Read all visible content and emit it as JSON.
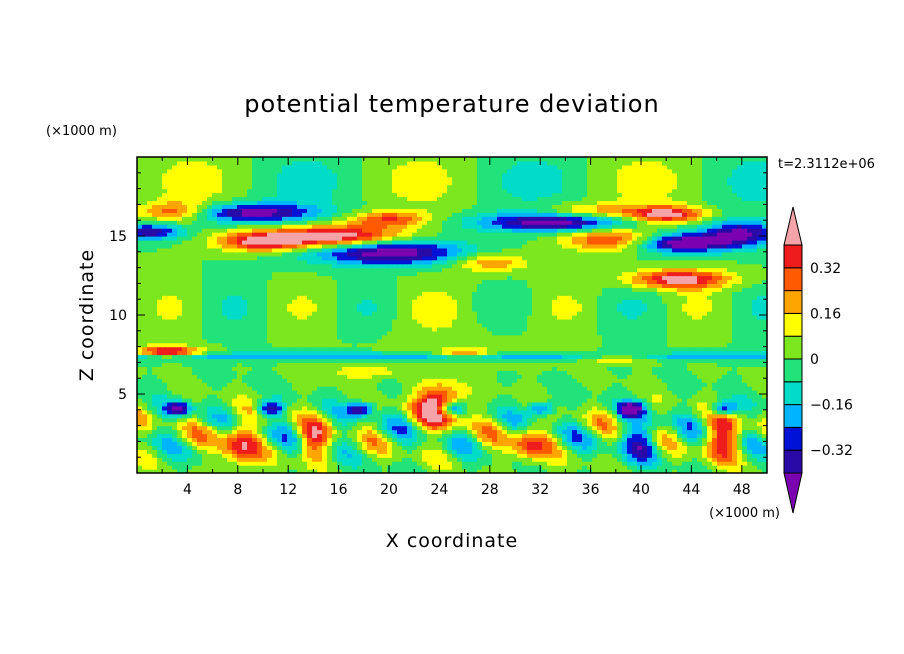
{
  "chart_data": {
    "type": "heatmap",
    "title": "potential temperature deviation",
    "xlabel": "X coordinate",
    "ylabel": "Z coordinate",
    "x_units": "(×1000 m)",
    "y_units": "(×1000 m)",
    "time_label": "t=2.3112e+06",
    "xlim": [
      0,
      50
    ],
    "ylim": [
      0,
      20
    ],
    "x_ticks": [
      4,
      8,
      12,
      16,
      20,
      24,
      28,
      32,
      36,
      40,
      44,
      48
    ],
    "y_ticks": [
      5,
      10,
      15
    ],
    "levels": [
      -0.4,
      -0.32,
      -0.24,
      -0.16,
      -0.08,
      0,
      0.08,
      0.16,
      0.24,
      0.32,
      0.4
    ],
    "colorbar_labels": [
      "0.32",
      "0.16",
      "0",
      "−0.16",
      "−0.32"
    ],
    "colorbar_label_values": [
      0.32,
      0.16,
      0,
      -0.16,
      -0.32
    ],
    "colors": [
      "#7a00b0",
      "#2a0aa6",
      "#0012d6",
      "#00b4ff",
      "#00dcc8",
      "#22e27a",
      "#7ce61e",
      "#ffff00",
      "#ffa500",
      "#ff5a00",
      "#ee1c1c",
      "#f4a3a8"
    ],
    "grid": false,
    "legend": "right"
  }
}
